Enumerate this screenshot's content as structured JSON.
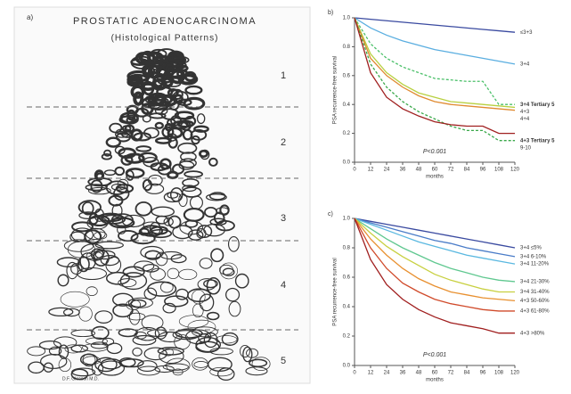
{
  "panel_a": {
    "letter": "a)",
    "title": "PROSTATIC ADENOCARCINOMA",
    "subtitle": "(Histological Patterns)",
    "patterns": [
      "1",
      "2",
      "3",
      "4",
      "5"
    ],
    "signature": "D.F. Gleason M.D."
  },
  "chart_data": [
    {
      "type": "line",
      "letter": "b)",
      "ylabel": "PSA recurrence-free survival",
      "xlabel": "months",
      "annotation": "P<0.001",
      "x": [
        0,
        12,
        24,
        36,
        48,
        60,
        72,
        84,
        96,
        108,
        120
      ],
      "xlim": [
        0,
        120
      ],
      "xticks": [
        0,
        12,
        24,
        36,
        48,
        60,
        72,
        84,
        96,
        108,
        120
      ],
      "ylim": [
        0,
        1
      ],
      "yticks": [
        {
          "value": 0,
          "label": "0.0"
        },
        {
          "value": 0.2,
          "label": "0.2"
        },
        {
          "value": 0.4,
          "label": "0.4"
        },
        {
          "value": 0.6,
          "label": "0.6"
        },
        {
          "value": 0.8,
          "label": "0.8"
        },
        {
          "value": 1,
          "label": "1.0"
        }
      ],
      "series": [
        {
          "name": "≤3+3",
          "color": "#3a4aa0",
          "values": [
            1,
            0.99,
            0.98,
            0.97,
            0.96,
            0.95,
            0.94,
            0.93,
            0.92,
            0.91,
            0.9
          ]
        },
        {
          "name": "3+4",
          "color": "#5aaee0",
          "values": [
            1,
            0.93,
            0.88,
            0.84,
            0.81,
            0.78,
            0.76,
            0.74,
            0.72,
            0.7,
            0.68
          ]
        },
        {
          "name": "3+4 Tertiary 5",
          "color": "#4cc06a",
          "dashed": true,
          "values": [
            1,
            0.82,
            0.72,
            0.66,
            0.62,
            0.58,
            0.57,
            0.56,
            0.56,
            0.4,
            0.4
          ]
        },
        {
          "name": "4+3",
          "color": "#b8d040",
          "values": [
            1,
            0.75,
            0.62,
            0.54,
            0.48,
            0.45,
            0.42,
            0.41,
            0.4,
            0.39,
            0.38
          ]
        },
        {
          "name": "4+4",
          "color": "#e08a30",
          "values": [
            1,
            0.72,
            0.6,
            0.52,
            0.46,
            0.42,
            0.4,
            0.39,
            0.38,
            0.37,
            0.36
          ]
        },
        {
          "name": "4+3 Tertiary 5",
          "color": "#3aa84a",
          "dashed": true,
          "values": [
            1,
            0.68,
            0.52,
            0.42,
            0.35,
            0.3,
            0.25,
            0.22,
            0.22,
            0.15,
            0.15
          ]
        },
        {
          "name": "9-10",
          "color": "#a02020",
          "values": [
            1,
            0.62,
            0.45,
            0.37,
            0.32,
            0.28,
            0.26,
            0.25,
            0.25,
            0.2,
            0.2
          ]
        }
      ]
    },
    {
      "type": "line",
      "letter": "c)",
      "ylabel": "PSA recurrence-free survival",
      "xlabel": "months",
      "annotation": "P<0.001",
      "x": [
        0,
        12,
        24,
        36,
        48,
        60,
        72,
        84,
        96,
        108,
        120
      ],
      "xlim": [
        0,
        120
      ],
      "xticks": [
        0,
        12,
        24,
        36,
        48,
        60,
        72,
        84,
        96,
        108,
        120
      ],
      "ylim": [
        0,
        1
      ],
      "yticks": [
        {
          "value": 0,
          "label": "0.0"
        },
        {
          "value": 0.2,
          "label": "0.2"
        },
        {
          "value": 0.4,
          "label": "0.4"
        },
        {
          "value": 0.6,
          "label": "0.6"
        },
        {
          "value": 0.8,
          "label": "0.8"
        },
        {
          "value": 1,
          "label": "1.0"
        }
      ],
      "series": [
        {
          "name": "3+4 ≤5%",
          "color": "#3a4aa0",
          "values": [
            1,
            0.98,
            0.96,
            0.94,
            0.92,
            0.9,
            0.88,
            0.86,
            0.84,
            0.82,
            0.8
          ]
        },
        {
          "name": "3+4 6-10%",
          "color": "#4a7cc8",
          "values": [
            1,
            0.97,
            0.94,
            0.91,
            0.88,
            0.85,
            0.83,
            0.8,
            0.78,
            0.76,
            0.74
          ]
        },
        {
          "name": "3+4 11-20%",
          "color": "#5ab8e0",
          "values": [
            1,
            0.96,
            0.92,
            0.88,
            0.84,
            0.81,
            0.78,
            0.75,
            0.73,
            0.71,
            0.69
          ]
        },
        {
          "name": "3+4 21-30%",
          "color": "#60c890",
          "values": [
            1,
            0.93,
            0.86,
            0.8,
            0.75,
            0.7,
            0.66,
            0.63,
            0.6,
            0.58,
            0.57
          ]
        },
        {
          "name": "3+4 31-40%",
          "color": "#c8d040",
          "values": [
            1,
            0.9,
            0.81,
            0.74,
            0.68,
            0.62,
            0.58,
            0.55,
            0.52,
            0.5,
            0.5
          ]
        },
        {
          "name": "4+3 50-60%",
          "color": "#e89030",
          "values": [
            1,
            0.86,
            0.75,
            0.66,
            0.59,
            0.54,
            0.5,
            0.48,
            0.46,
            0.45,
            0.44
          ]
        },
        {
          "name": "4+3 61-80%",
          "color": "#d04a2a",
          "values": [
            1,
            0.8,
            0.66,
            0.56,
            0.5,
            0.45,
            0.42,
            0.4,
            0.38,
            0.37,
            0.37
          ]
        },
        {
          "name": "4+3 >80%",
          "color": "#a01e1e",
          "values": [
            1,
            0.72,
            0.55,
            0.45,
            0.38,
            0.33,
            0.29,
            0.27,
            0.25,
            0.22,
            0.22
          ]
        }
      ]
    }
  ]
}
